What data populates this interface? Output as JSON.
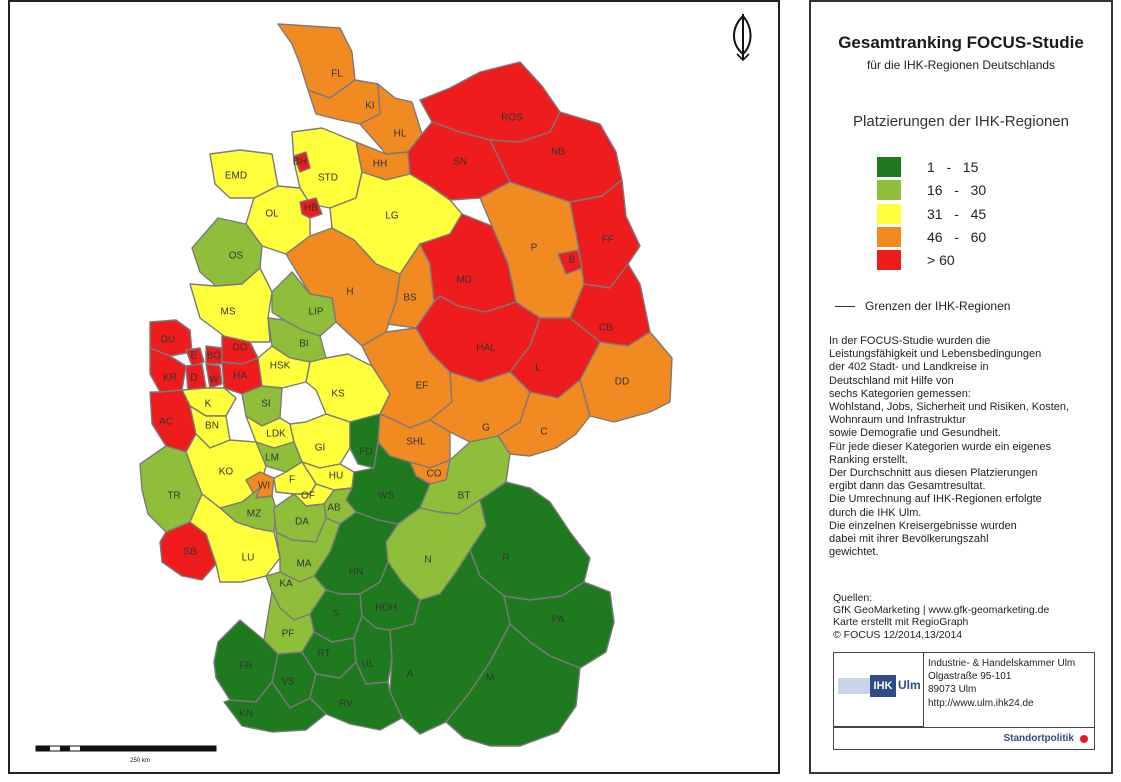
{
  "map": {
    "scale_label": "250 km",
    "regions": [
      {
        "code": "FL",
        "class": "c4"
      },
      {
        "code": "KI",
        "class": "c4"
      },
      {
        "code": "HL",
        "class": "c4"
      },
      {
        "code": "HH",
        "class": "c4"
      },
      {
        "code": "ROS",
        "class": "c5"
      },
      {
        "code": "NB",
        "class": "c5"
      },
      {
        "code": "SN",
        "class": "c5"
      },
      {
        "code": "EMD",
        "class": "c3"
      },
      {
        "code": "STD",
        "class": "c3"
      },
      {
        "code": "OL",
        "class": "c3"
      },
      {
        "code": "LG",
        "class": "c3"
      },
      {
        "code": "HB",
        "class": "c5"
      },
      {
        "code": "BH",
        "class": "c5"
      },
      {
        "code": "OS",
        "class": "c2"
      },
      {
        "code": "P",
        "class": "c4"
      },
      {
        "code": "FF",
        "class": "c5"
      },
      {
        "code": "B",
        "class": "c5"
      },
      {
        "code": "H",
        "class": "c4"
      },
      {
        "code": "BS",
        "class": "c4"
      },
      {
        "code": "MD",
        "class": "c5"
      },
      {
        "code": "MS",
        "class": "c3"
      },
      {
        "code": "LIP",
        "class": "c2"
      },
      {
        "code": "BI",
        "class": "c2"
      },
      {
        "code": "CB",
        "class": "c5"
      },
      {
        "code": "HAL",
        "class": "c5"
      },
      {
        "code": "L",
        "class": "c5"
      },
      {
        "code": "DD",
        "class": "c4"
      },
      {
        "code": "DU",
        "class": "c5"
      },
      {
        "code": "E",
        "class": "c5"
      },
      {
        "code": "BO",
        "class": "c5"
      },
      {
        "code": "DO",
        "class": "c5"
      },
      {
        "code": "KR",
        "class": "c5"
      },
      {
        "code": "D",
        "class": "c5"
      },
      {
        "code": "W",
        "class": "c5"
      },
      {
        "code": "HA",
        "class": "c5"
      },
      {
        "code": "HSK",
        "class": "c3"
      },
      {
        "code": "KS",
        "class": "c3"
      },
      {
        "code": "EF",
        "class": "c4"
      },
      {
        "code": "K",
        "class": "c3"
      },
      {
        "code": "SI",
        "class": "c2"
      },
      {
        "code": "AC",
        "class": "c5"
      },
      {
        "code": "BN",
        "class": "c3"
      },
      {
        "code": "LDK",
        "class": "c3"
      },
      {
        "code": "SHL",
        "class": "c4"
      },
      {
        "code": "G",
        "class": "c4"
      },
      {
        "code": "C",
        "class": "c4"
      },
      {
        "code": "GI",
        "class": "c3"
      },
      {
        "code": "FD",
        "class": "c1"
      },
      {
        "code": "LM",
        "class": "c2"
      },
      {
        "code": "KO",
        "class": "c3"
      },
      {
        "code": "HU",
        "class": "c3"
      },
      {
        "code": "CO",
        "class": "c4"
      },
      {
        "code": "WI",
        "class": "c4"
      },
      {
        "code": "F",
        "class": "c3"
      },
      {
        "code": "TR",
        "class": "c2"
      },
      {
        "code": "OF",
        "class": "c3"
      },
      {
        "code": "WS",
        "class": "c1"
      },
      {
        "code": "BT",
        "class": "c2"
      },
      {
        "code": "MZ",
        "class": "c2"
      },
      {
        "code": "AB",
        "class": "c2"
      },
      {
        "code": "DA",
        "class": "c2"
      },
      {
        "code": "SB",
        "class": "c5"
      },
      {
        "code": "LU",
        "class": "c3"
      },
      {
        "code": "N",
        "class": "c2"
      },
      {
        "code": "MA",
        "class": "c2"
      },
      {
        "code": "R",
        "class": "c1"
      },
      {
        "code": "HN",
        "class": "c1"
      },
      {
        "code": "KA",
        "class": "c2"
      },
      {
        "code": "S",
        "class": "c1"
      },
      {
        "code": "HDH",
        "class": "c1"
      },
      {
        "code": "PA",
        "class": "c1"
      },
      {
        "code": "PF",
        "class": "c2"
      },
      {
        "code": "RT",
        "class": "c1"
      },
      {
        "code": "UL",
        "class": "c1"
      },
      {
        "code": "FR",
        "class": "c1"
      },
      {
        "code": "VS",
        "class": "c1"
      },
      {
        "code": "A",
        "class": "c1"
      },
      {
        "code": "M",
        "class": "c1"
      },
      {
        "code": "RV",
        "class": "c1"
      },
      {
        "code": "KN",
        "class": "c1"
      }
    ]
  },
  "legend": {
    "title": "Gesamtranking FOCUS-Studie",
    "subtitle": "für die IHK-Regionen Deutschlands",
    "heading": "Platzierungen der IHK-Regionen",
    "classes": [
      {
        "id": "c1",
        "label": "1   -   15",
        "color": "#1f7a1f"
      },
      {
        "id": "c2",
        "label": "16   -   30",
        "color": "#8fbf3a"
      },
      {
        "id": "c3",
        "label": "31   -   45",
        "color": "#ffff3c"
      },
      {
        "id": "c4",
        "label": "46   -   60",
        "color": "#f28a22"
      },
      {
        "id": "c5",
        "label": "> 60",
        "color": "#ee1c1c"
      }
    ],
    "border_label": "Grenzen der IHK-Regionen",
    "description_lines": [
      "In der FOCUS-Studie wurden die",
      "Leistungsfähigkeit und Lebensbedingungen",
      "der 402 Stadt- und Landkreise in",
      "Deutschland mit Hilfe von",
      "sechs Kategorien gemessen:",
      "Wohlstand, Jobs, Sicherheit und Risiken, Kosten,",
      "Wohnraum und Infrastruktur",
      "sowie Demografie und Gesundheit.",
      "Für jede dieser Kategorien wurde ein eigenes",
      "Ranking erstellt.",
      "Der Durchschnitt aus diesen Platzierungen",
      "ergibt dann das Gesamtresultat.",
      "Die Umrechnung auf IHK-Regionen erfolgte",
      "durch die IHK Ulm.",
      "Die einzelnen Kreisergebnisse wurden",
      "dabei mit ihrer Bevölkerungszahl",
      "gewichtet."
    ],
    "sources_lines": [
      "Quellen:",
      "GfK GeoMarketing | www.gfk-geomarketing.de",
      "Karte erstellt mit RegioGraph",
      "© FOCUS  12/2014,13/2014"
    ]
  },
  "ihk": {
    "logo_text": "IHK",
    "logo_city": "Ulm",
    "address_lines": [
      "Industrie- & Handelskammer Ulm",
      "Olgastraße 95-101",
      "89073 Ulm",
      "http://www.ulm.ihk24.de"
    ],
    "footer": "Standortpolitik"
  }
}
